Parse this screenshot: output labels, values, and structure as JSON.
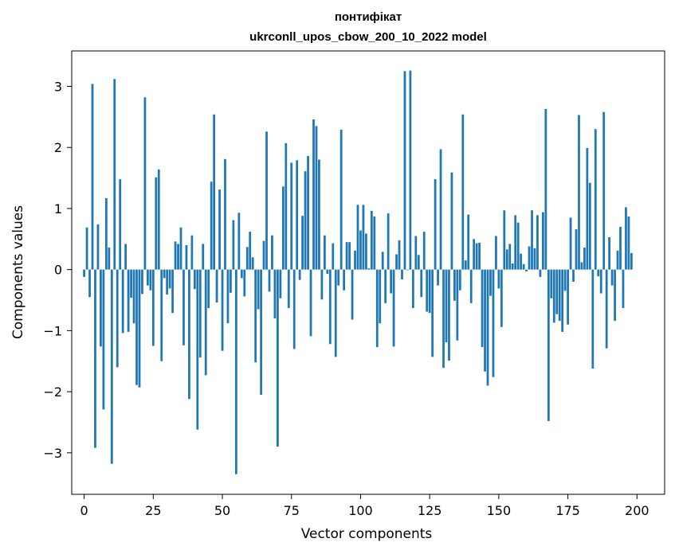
{
  "chart_data": {
    "type": "bar",
    "title_line1": "понтифікат",
    "title_line2": "ukrconll_upos_cbow_200_10_2022 model",
    "xlabel": "Vector components",
    "ylabel": "Components values",
    "xlim": [
      -4.5,
      210
    ],
    "ylim": [
      -3.68,
      3.58
    ],
    "x_ticks": [
      0,
      25,
      50,
      75,
      100,
      125,
      150,
      175,
      200
    ],
    "y_ticks": [
      -3,
      -2,
      -1,
      0,
      1,
      2,
      3
    ],
    "x_tick_labels": [
      "0",
      "25",
      "50",
      "75",
      "100",
      "125",
      "150",
      "175",
      "200"
    ],
    "y_tick_labels": [
      "−3",
      "−2",
      "−1",
      "0",
      "1",
      "2",
      "3"
    ],
    "bar_color": "#1f77b4",
    "grid": false,
    "values": [
      -0.12,
      0.69,
      -0.45,
      3.04,
      -2.92,
      0.74,
      -1.26,
      -2.29,
      1.17,
      0.36,
      -3.18,
      3.12,
      -1.6,
      1.48,
      -1.04,
      0.42,
      -1.02,
      -0.46,
      -0.88,
      -1.89,
      -1.93,
      -0.4,
      2.82,
      -0.26,
      -0.34,
      -1.25,
      1.51,
      1.64,
      -1.5,
      -0.14,
      -0.41,
      -0.31,
      -0.71,
      0.46,
      0.42,
      0.69,
      -1.24,
      0.4,
      -2.12,
      0.56,
      -0.32,
      -2.62,
      -1.44,
      0.42,
      -1.73,
      -0.63,
      1.44,
      2.54,
      -0.54,
      1.31,
      -1.33,
      1.81,
      -0.88,
      -0.38,
      0.81,
      -3.35,
      0.93,
      -0.14,
      -0.44,
      0.37,
      0.62,
      0.2,
      -1.52,
      -0.65,
      -2.05,
      0.47,
      2.26,
      -0.36,
      0.56,
      -0.8,
      -2.9,
      -0.47,
      1.36,
      2.07,
      -0.63,
      1.75,
      -1.3,
      1.79,
      -0.17,
      0.88,
      1.61,
      1.86,
      -1.09,
      2.46,
      2.35,
      1.8,
      -0.49,
      0.56,
      -0.07,
      -1.22,
      0.43,
      -1.43,
      -0.26,
      2.29,
      -0.34,
      0.45,
      0.45,
      -0.82,
      0.31,
      1.06,
      0.64,
      1.06,
      0.59,
      0.02,
      0.96,
      0.87,
      -1.27,
      -0.88,
      0.29,
      -0.55,
      0.92,
      -0.39,
      -1.26,
      0.25,
      0.48,
      -0.16,
      3.25,
      -0.01,
      3.26,
      -0.63,
      0.55,
      0.24,
      -0.45,
      0.62,
      -0.69,
      -0.71,
      -1.43,
      1.48,
      -0.26,
      1.97,
      -1.61,
      -1.19,
      -1.49,
      1.59,
      -0.51,
      -1.16,
      -0.34,
      2.54,
      0.15,
      0.9,
      -0.55,
      0.5,
      0.43,
      0.44,
      -1.27,
      -1.67,
      -1.9,
      -0.43,
      -1.76,
      0.55,
      -0.31,
      -0.94,
      0.97,
      0.33,
      0.42,
      0.1,
      0.89,
      0.77,
      0.26,
      0.09,
      -0.03,
      0.38,
      0.97,
      0.35,
      0.89,
      -0.12,
      0.94,
      2.63,
      -2.48,
      -0.47,
      -0.87,
      -0.73,
      -0.84,
      -1.02,
      -0.35,
      -0.9,
      0.85,
      -0.2,
      0.66,
      2.53,
      0.12,
      0.36,
      1.99,
      1.42,
      -1.62,
      2.3,
      -0.11,
      -0.39,
      2.58,
      -1.29,
      0.53,
      -0.26,
      -0.84,
      0.31,
      0.7,
      -0.63,
      1.02,
      0.87,
      0.27
    ]
  }
}
